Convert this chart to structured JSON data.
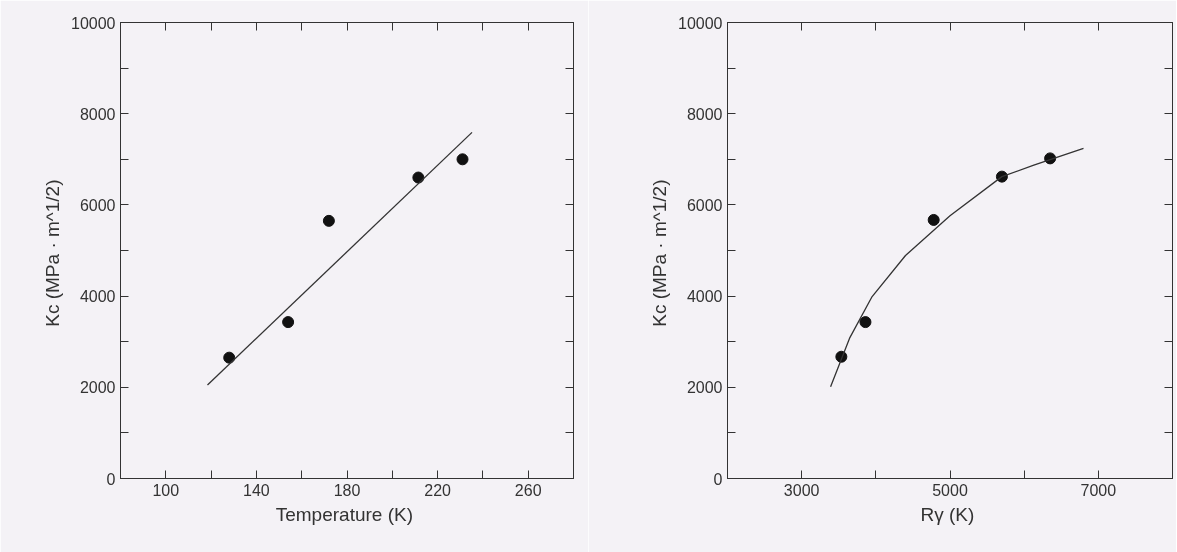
{
  "chart_data": [
    {
      "type": "scatter",
      "xlabel": "Temperature  (K)",
      "ylabel": "Kc  (MPa · m^1/2)",
      "xlim": [
        80,
        280
      ],
      "ylim": [
        0,
        10000
      ],
      "xticks": [
        {
          "value": 80,
          "label": null
        },
        100,
        {
          "value": 120,
          "label": null
        },
        140,
        {
          "value": 160,
          "label": null
        },
        180,
        {
          "value": 200,
          "label": null
        },
        220,
        {
          "value": 240,
          "label": null
        },
        260,
        {
          "value": 280,
          "label": null
        }
      ],
      "yticks": [
        0,
        {
          "value": 1000,
          "label": null
        },
        2000,
        {
          "value": 3000,
          "label": null
        },
        4000,
        {
          "value": 5000,
          "label": null
        },
        6000,
        {
          "value": 7000,
          "label": null
        },
        8000,
        {
          "value": 9000,
          "label": null
        },
        10000
      ],
      "grid": false,
      "series": [
        {
          "marker": "circle",
          "color": "#111111",
          "x": [
            128,
            154,
            172,
            211.5,
            231
          ],
          "values": [
            2650,
            3430,
            5650,
            6600,
            7000
          ]
        },
        {
          "type": "line",
          "marker": "none",
          "color": "#333333",
          "x": [
            118.4,
            235.2
          ],
          "values": [
            2050,
            7590
          ]
        }
      ]
    },
    {
      "type": "scatter",
      "xlabel": "Rγ  (K)",
      "ylabel": "Kc  (MPa · m^1/2)",
      "xlim": [
        2000,
        8000
      ],
      "ylim": [
        0,
        10000
      ],
      "xticks": [
        {
          "value": 2000,
          "label": null
        },
        3000,
        {
          "value": 4000,
          "label": null
        },
        5000,
        {
          "value": 6000,
          "label": null
        },
        7000,
        {
          "value": 8000,
          "label": null
        }
      ],
      "yticks": [
        0,
        {
          "value": 1000,
          "label": null
        },
        2000,
        {
          "value": 3000,
          "label": null
        },
        4000,
        {
          "value": 5000,
          "label": null
        },
        6000,
        {
          "value": 7000,
          "label": null
        },
        8000,
        {
          "value": 9000,
          "label": null
        },
        10000
      ],
      "grid": false,
      "series": [
        {
          "marker": "circle",
          "color": "#111111",
          "x": [
            3535,
            3860,
            4780,
            5700,
            6350
          ],
          "values": [
            2670,
            3430,
            5670,
            6620,
            7020
          ]
        },
        {
          "type": "line",
          "marker": "none",
          "color": "#333333",
          "x": [
            3390,
            3650,
            3950,
            4400,
            5000,
            5700,
            6130,
            6800
          ],
          "values": [
            2010,
            3090,
            3990,
            4890,
            5760,
            6620,
            6870,
            7240
          ]
        }
      ]
    }
  ]
}
